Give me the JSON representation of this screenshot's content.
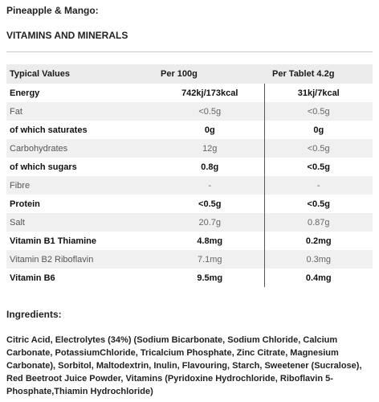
{
  "flavour_title": "Pineapple & Mango:",
  "vitamins_title": "VITAMINS AND MINERALS",
  "table": {
    "headers": [
      "Typical Values",
      "Per 100g",
      "Per Tablet 4.2g"
    ],
    "rows": [
      {
        "style": "strong",
        "cells": [
          "Energy",
          "742kj/173kcal",
          "31kj/7kcal"
        ]
      },
      {
        "style": "light",
        "cells": [
          "Fat",
          "<0.5g",
          "<0.5g"
        ]
      },
      {
        "style": "strong",
        "cells": [
          "of which saturates",
          "0g",
          "0g"
        ]
      },
      {
        "style": "light",
        "cells": [
          "Carbohydrates",
          "12g",
          "<0.5g"
        ]
      },
      {
        "style": "strong",
        "cells": [
          "of which sugars",
          "0.8g",
          "<0.5g"
        ]
      },
      {
        "style": "light",
        "cells": [
          "Fibre",
          "-",
          "-"
        ]
      },
      {
        "style": "strong",
        "cells": [
          "Protein",
          "<0.5g",
          "<0.5g"
        ]
      },
      {
        "style": "light",
        "cells": [
          "Salt",
          "20.7g",
          "0.87g"
        ]
      },
      {
        "style": "strong",
        "cells": [
          "Vitamin B1 Thiamine",
          "4.8mg",
          "0.2mg"
        ]
      },
      {
        "style": "light",
        "cells": [
          "Vitamin B2 Riboflavin",
          "7.1mg",
          "0.3mg"
        ]
      },
      {
        "style": "strong",
        "cells": [
          "Vitamin B6",
          "9.5mg",
          "0.4mg"
        ]
      }
    ]
  },
  "ingredients_title": "Ingredients:",
  "ingredients_text": "Citric Acid, Electrolytes (34%) (Sodium Bicarbonate, Sodium Chloride, Calcium Carbonate, PotassiumChloride, Tricalcium Phosphate, Zinc Citrate, Magnesium Carbonate), Sorbitol, Maltodextrin, Inulin, Flavouring, Starch, Sweetener (Sucralose), Red Beetroot Juice Powder, Vitamins (Pyridoxine Hydrochloride, Riboflavin 5-Phosphate,Thiamin Hydrochloride)"
}
